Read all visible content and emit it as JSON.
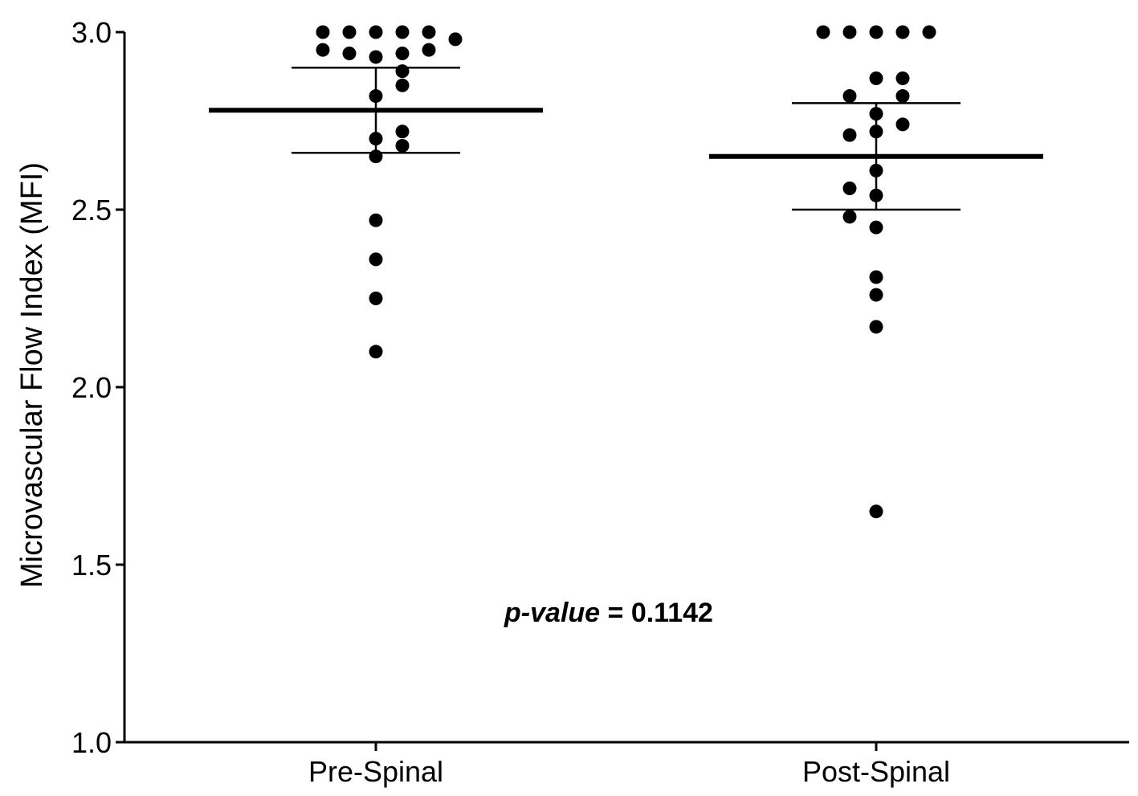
{
  "chart_data": {
    "type": "scatter",
    "ylabel": "Microvascular Flow Index (MFI)",
    "xlabel": "",
    "ylim": [
      1.0,
      3.0
    ],
    "yticks": [
      1.0,
      1.5,
      2.0,
      2.5,
      3.0
    ],
    "ytick_labels": [
      "1.0",
      "1.5",
      "2.0",
      "2.5",
      "3.0"
    ],
    "categories": [
      "Pre-Spinal",
      "Post-Spinal"
    ],
    "grid": false,
    "series": [
      {
        "category": "Pre-Spinal",
        "points": [
          {
            "slot": -2,
            "y": 3.0
          },
          {
            "slot": -1,
            "y": 3.0
          },
          {
            "slot": 0,
            "y": 3.0
          },
          {
            "slot": 1,
            "y": 3.0
          },
          {
            "slot": 2,
            "y": 3.0
          },
          {
            "slot": 3,
            "y": 2.98
          },
          {
            "slot": -2,
            "y": 2.95
          },
          {
            "slot": -1,
            "y": 2.94
          },
          {
            "slot": 0,
            "y": 2.93
          },
          {
            "slot": 1,
            "y": 2.94
          },
          {
            "slot": 2,
            "y": 2.95
          },
          {
            "slot": 1,
            "y": 2.89
          },
          {
            "slot": 1,
            "y": 2.85
          },
          {
            "slot": 0,
            "y": 2.82
          },
          {
            "slot": 1,
            "y": 2.72
          },
          {
            "slot": 0,
            "y": 2.7
          },
          {
            "slot": 1,
            "y": 2.68
          },
          {
            "slot": 0,
            "y": 2.65
          },
          {
            "slot": 0,
            "y": 2.47
          },
          {
            "slot": 0,
            "y": 2.36
          },
          {
            "slot": 0,
            "y": 2.25
          },
          {
            "slot": 0,
            "y": 2.1
          }
        ],
        "mean": 2.78,
        "error_upper": 2.9,
        "error_lower": 2.66
      },
      {
        "category": "Post-Spinal",
        "points": [
          {
            "slot": -2,
            "y": 3.0
          },
          {
            "slot": -1,
            "y": 3.0
          },
          {
            "slot": 0,
            "y": 3.0
          },
          {
            "slot": 1,
            "y": 3.0
          },
          {
            "slot": 2,
            "y": 3.0
          },
          {
            "slot": 0,
            "y": 2.87
          },
          {
            "slot": 1,
            "y": 2.87
          },
          {
            "slot": -1,
            "y": 2.82
          },
          {
            "slot": 1,
            "y": 2.82
          },
          {
            "slot": 0,
            "y": 2.77
          },
          {
            "slot": 1,
            "y": 2.74
          },
          {
            "slot": 0,
            "y": 2.72
          },
          {
            "slot": -1,
            "y": 2.71
          },
          {
            "slot": 0,
            "y": 2.61
          },
          {
            "slot": -1,
            "y": 2.56
          },
          {
            "slot": 0,
            "y": 2.54
          },
          {
            "slot": -1,
            "y": 2.48
          },
          {
            "slot": 0,
            "y": 2.45
          },
          {
            "slot": 0,
            "y": 2.31
          },
          {
            "slot": 0,
            "y": 2.26
          },
          {
            "slot": 0,
            "y": 2.17
          },
          {
            "slot": 0,
            "y": 1.65
          }
        ],
        "mean": 2.65,
        "error_upper": 2.8,
        "error_lower": 2.5
      }
    ],
    "annotation": {
      "label_italic": "p-value",
      "label_rest": " = 0.1142"
    },
    "colors": {
      "points": "#000000",
      "axes": "#000000"
    }
  }
}
